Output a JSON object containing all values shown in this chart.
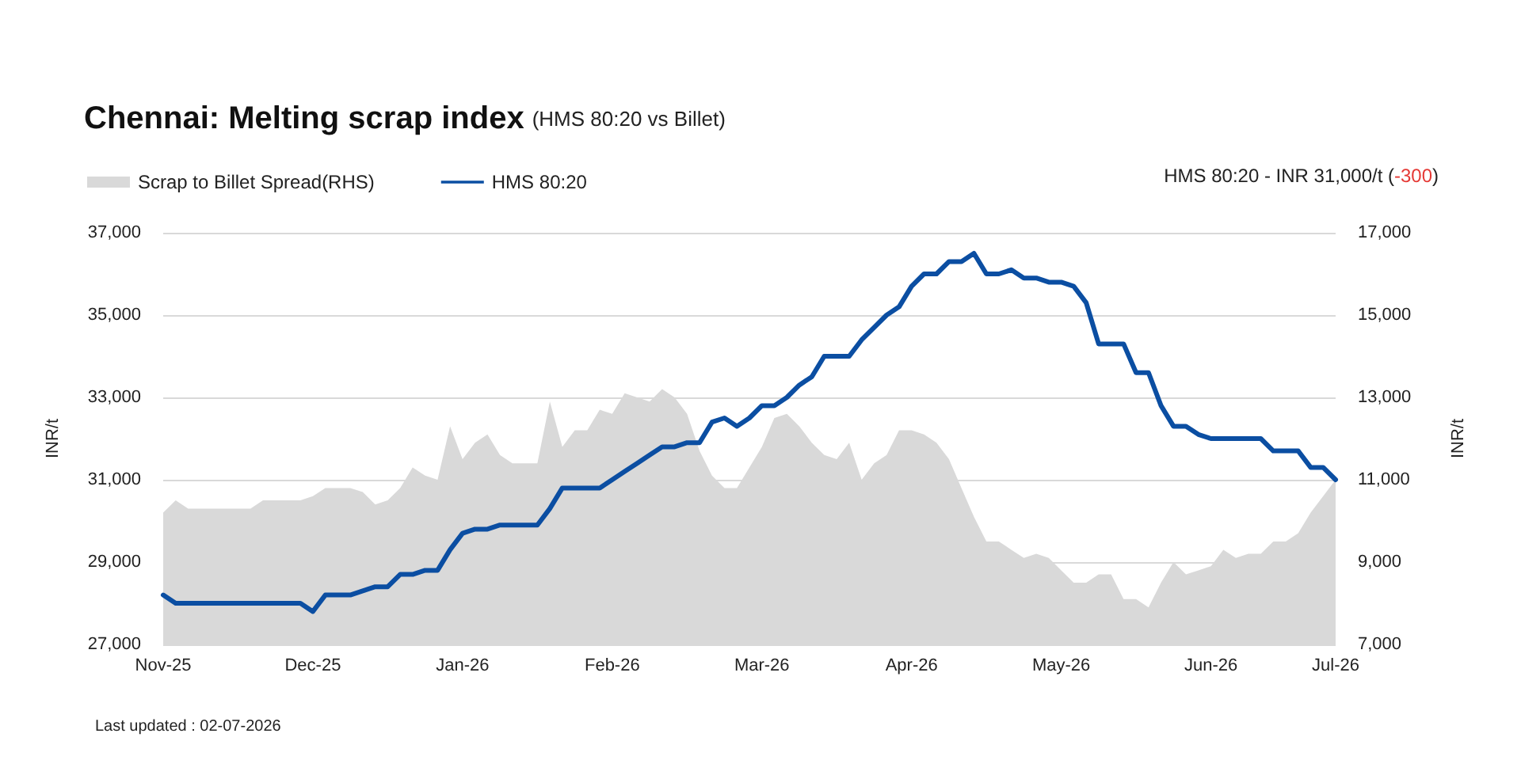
{
  "chart_data": {
    "type": "line",
    "title": "Chennai: Melting scrap index",
    "subtitle": "(HMS 80:20 vs Billet)",
    "ylabel": "INR/t",
    "y2label": "INR/t",
    "categories": [
      "Nov-25",
      null,
      null,
      null,
      null,
      null,
      null,
      null,
      null,
      null,
      null,
      null,
      "Dec-25",
      null,
      null,
      null,
      null,
      null,
      null,
      null,
      null,
      null,
      null,
      null,
      "Jan-26",
      null,
      null,
      null,
      null,
      null,
      null,
      null,
      null,
      null,
      null,
      null,
      "Feb-26",
      null,
      null,
      null,
      null,
      null,
      null,
      null,
      null,
      null,
      null,
      null,
      "Mar-26",
      null,
      null,
      null,
      null,
      null,
      null,
      null,
      null,
      null,
      null,
      null,
      "Apr-26",
      null,
      null,
      null,
      null,
      null,
      null,
      null,
      null,
      null,
      null,
      null,
      "May-26",
      null,
      null,
      null,
      null,
      null,
      null,
      null,
      null,
      null,
      null,
      null,
      "Jun-26",
      null,
      null,
      null,
      null,
      null,
      null,
      null,
      null,
      null,
      "Jul-26"
    ],
    "series": [
      {
        "name": "Scrap to Billet Spread(RHS)",
        "type": "area",
        "axis": "y2",
        "color": "#d9d9d9",
        "values": [
          10200,
          10500,
          10300,
          10300,
          10300,
          10300,
          10300,
          10300,
          10500,
          10500,
          10500,
          10500,
          10600,
          10800,
          10800,
          10800,
          10700,
          10400,
          10500,
          10800,
          11300,
          11100,
          11000,
          12300,
          11500,
          11900,
          12100,
          11600,
          11400,
          11400,
          11400,
          12900,
          11800,
          12200,
          12200,
          12700,
          12600,
          13100,
          13000,
          12900,
          13200,
          13000,
          12600,
          11700,
          11100,
          10800,
          10800,
          11300,
          11800,
          12500,
          12600,
          12300,
          11900,
          11600,
          11500,
          11900,
          11000,
          11400,
          11600,
          12200,
          12200,
          12100,
          11900,
          11500,
          10800,
          10100,
          9500,
          9500,
          9300,
          9100,
          9200,
          9100,
          8800,
          8500,
          8500,
          8700,
          8700,
          8100,
          8100,
          7900,
          8500,
          9000,
          8700,
          8800,
          8900,
          9300,
          9100,
          9200,
          9200,
          9500,
          9500,
          9700,
          10200,
          10600,
          11000
        ]
      },
      {
        "name": "HMS 80:20",
        "color": "#0b4ea2",
        "values": [
          28200,
          28000,
          28000,
          28000,
          28000,
          28000,
          28000,
          28000,
          28000,
          28000,
          28000,
          28000,
          27800,
          28200,
          28200,
          28200,
          28300,
          28400,
          28400,
          28700,
          28700,
          28800,
          28800,
          29300,
          29700,
          29800,
          29800,
          29900,
          29900,
          29900,
          29900,
          30300,
          30800,
          30800,
          30800,
          30800,
          31000,
          31200,
          31400,
          31600,
          31800,
          31800,
          31900,
          31900,
          32400,
          32500,
          32300,
          32500,
          32800,
          32800,
          33000,
          33300,
          33500,
          34000,
          34000,
          34000,
          34400,
          34700,
          35000,
          35200,
          35700,
          36000,
          36000,
          36300,
          36300,
          36500,
          36000,
          36000,
          36100,
          35900,
          35900,
          35800,
          35800,
          35700,
          35300,
          34300,
          34300,
          34300,
          33600,
          33600,
          32800,
          32300,
          32300,
          32100,
          32000,
          32000,
          32000,
          32000,
          32000,
          31700,
          31700,
          31700,
          31300,
          31300,
          31000
        ]
      }
    ],
    "ylim": [
      27000,
      37000
    ],
    "yticks": [
      {
        "value": 27000,
        "label": "27,000"
      },
      {
        "value": 29000,
        "label": "29,000"
      },
      {
        "value": 31000,
        "label": "31,000"
      },
      {
        "value": 33000,
        "label": "33,000"
      },
      {
        "value": 35000,
        "label": "35,000"
      },
      {
        "value": 37000,
        "label": "37,000"
      }
    ],
    "y2lim": [
      7000,
      17000
    ],
    "y2ticks": [
      {
        "value": 7000,
        "label": "7,000"
      },
      {
        "value": 9000,
        "label": "9,000"
      },
      {
        "value": 11000,
        "label": "11,000"
      },
      {
        "value": 13000,
        "label": "13,000"
      },
      {
        "value": 15000,
        "label": "15,000"
      },
      {
        "value": 17000,
        "label": "17,000"
      }
    ],
    "grid": "y",
    "legend": "top left",
    "marker": "none",
    "line_style": "solid",
    "annotations": [
      "HMS 80:20 - INR 31,000/t (-300)",
      "Last updated : 02-07-2026"
    ]
  }
}
